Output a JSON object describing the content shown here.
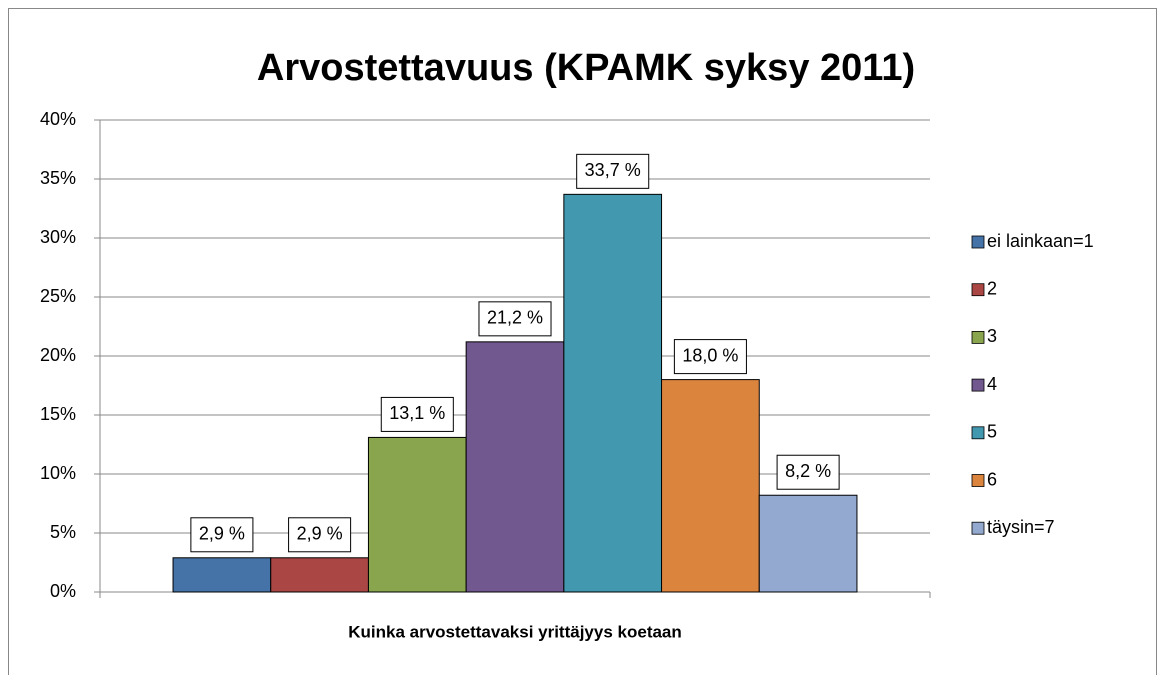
{
  "chart_data": {
    "type": "bar",
    "title": "Arvostettavuus (KPAMK syksy 2011)",
    "x_label": "Kuinka arvostettavaksi yrittäjyys koetaan",
    "categories": [
      null
    ],
    "series": [
      {
        "name": "ei lainkaan=1",
        "color": "#4572a7",
        "values": [
          2.9
        ],
        "value_labels": [
          "2,9 %"
        ]
      },
      {
        "name": "2",
        "color": "#aa4643",
        "values": [
          2.9
        ],
        "value_labels": [
          "2,9 %"
        ]
      },
      {
        "name": "3",
        "color": "#89a54e",
        "values": [
          13.1
        ],
        "value_labels": [
          "13,1 %"
        ]
      },
      {
        "name": "4",
        "color": "#71588f",
        "values": [
          21.2
        ],
        "value_labels": [
          "21,2 %"
        ]
      },
      {
        "name": "5",
        "color": "#4198af",
        "values": [
          33.7
        ],
        "value_labels": [
          "33,7 %"
        ]
      },
      {
        "name": "6",
        "color": "#db843d",
        "values": [
          18.0
        ],
        "value_labels": [
          "18,0 %"
        ]
      },
      {
        "name": "täysin=7",
        "color": "#93a9cf",
        "values": [
          8.2
        ],
        "value_labels": [
          "8,2 %"
        ]
      }
    ],
    "ylim": [
      0,
      40
    ],
    "yticks": [
      {
        "value": 0,
        "label": "0%"
      },
      {
        "value": 5,
        "label": "5%"
      },
      {
        "value": 10,
        "label": "10%"
      },
      {
        "value": 15,
        "label": "15%"
      },
      {
        "value": 20,
        "label": "20%"
      },
      {
        "value": 25,
        "label": "25%"
      },
      {
        "value": 30,
        "label": "30%"
      },
      {
        "value": 35,
        "label": "35%"
      },
      {
        "value": 40,
        "label": "40%"
      }
    ],
    "grid": true,
    "legend": "right"
  }
}
